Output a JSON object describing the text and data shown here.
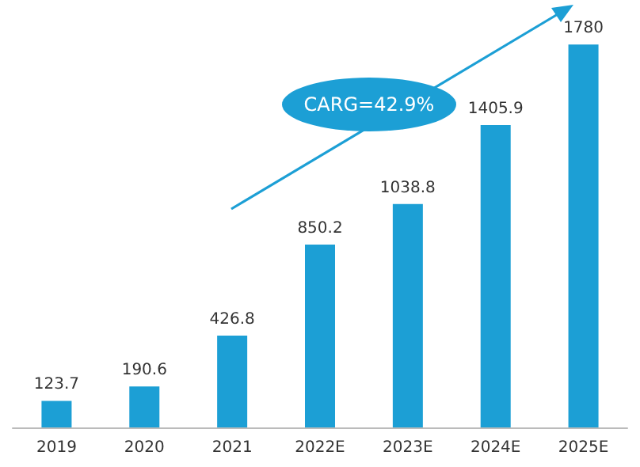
{
  "chart_data": {
    "type": "bar",
    "categories": [
      "2019",
      "2020",
      "2021",
      "2022E",
      "2023E",
      "2024E",
      "2025E"
    ],
    "values": [
      123.7,
      190.6,
      426.8,
      850.2,
      1038.8,
      1405.9,
      1780
    ],
    "color": "#1c9fd5",
    "data_labels": true,
    "grid": false,
    "annotations": [
      "CARG=42.9%"
    ]
  }
}
